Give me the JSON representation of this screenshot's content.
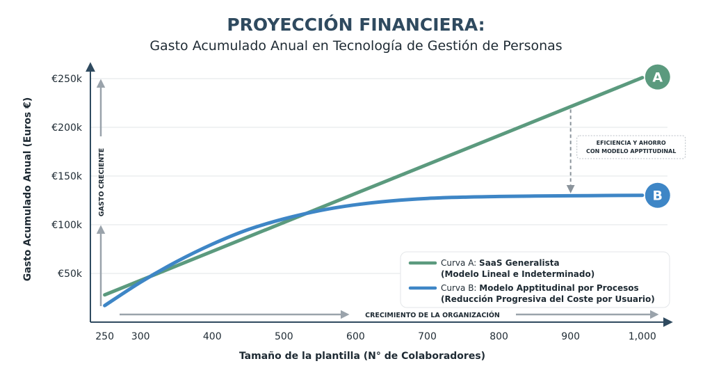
{
  "chart_data": {
    "type": "line",
    "title": "PROYECCIÓN FINANCIERA:",
    "subtitle": "Gasto Acumulado Anual en Tecnología de Gestión de Personas",
    "xlabel": "Tamaño de la plantilla (N° de Colaboradores)",
    "ylabel": "Gasto Acumulado Anual (Euros €)",
    "x_ticks": [
      "250",
      "300",
      "400",
      "500",
      "600",
      "700",
      "800",
      "900",
      "1,000"
    ],
    "y_ticks": [
      "€50k",
      "€100k",
      "€150k",
      "€200k",
      "€250k"
    ],
    "xlim": [
      230,
      1040
    ],
    "ylim": [
      0,
      265000
    ],
    "grid": true,
    "legend_placement": "bottom-right",
    "y_arrow_label": "GASTO CRECIENTE",
    "x_arrow_label": "CRECIMIENTO DE LA ORGANIZACIÓN",
    "annotation": {
      "line1": "EFICIENCIA Y AHORRO",
      "line2": "CON MODELO APPTITUDINAL",
      "x": 900
    },
    "series": [
      {
        "badge": "A",
        "color": "#5b9a7e",
        "legend_prefix": "Curva A: ",
        "legend_bold": "SaaS Generalista",
        "legend_line2": "(Modelo Lineal e Indeterminado)",
        "x": [
          250,
          1000
        ],
        "y": [
          28000,
          251000
        ]
      },
      {
        "badge": "B",
        "color": "#3e86c6",
        "legend_prefix": "Curva B: ",
        "legend_bold": "Modelo Apptitudinal por Procesos",
        "legend_line2": "(Reducción Progresiva del Coste por Usuario)",
        "x": [
          250,
          300,
          350,
          400,
          450,
          500,
          550,
          600,
          650,
          700,
          750,
          800,
          850,
          900,
          950,
          1000
        ],
        "y": [
          17000,
          41000,
          62000,
          80000,
          95000,
          106000,
          114500,
          120500,
          124500,
          127000,
          128300,
          129000,
          129400,
          129700,
          130000,
          130200
        ]
      }
    ]
  }
}
